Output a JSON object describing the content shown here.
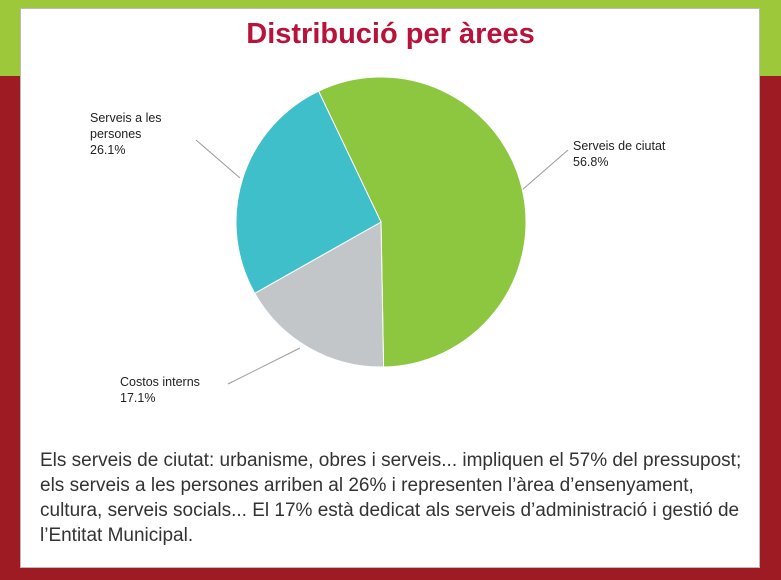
{
  "chart_data": {
    "type": "pie",
    "title": "Distribució per àrees",
    "categories": [
      "Serveis de ciutat",
      "Costos interns",
      "Serveis a les persones"
    ],
    "values": [
      56.8,
      17.1,
      26.1
    ],
    "value_labels": [
      "56.8%",
      "17.1%",
      "26.1%"
    ],
    "colors": [
      "#8dc63f",
      "#c3c6c8",
      "#3fbfca"
    ]
  },
  "text": "Els serveis de ciutat: urbanisme, obres i serveis... impliquen el 57% del pressupost; els serveis a les persones arriben al 26% i representen l’àrea d’ensenyament, cultura, serveis socials... El 17% està dedicat als serveis d’administració i gestió de l’Entitat Municipal."
}
